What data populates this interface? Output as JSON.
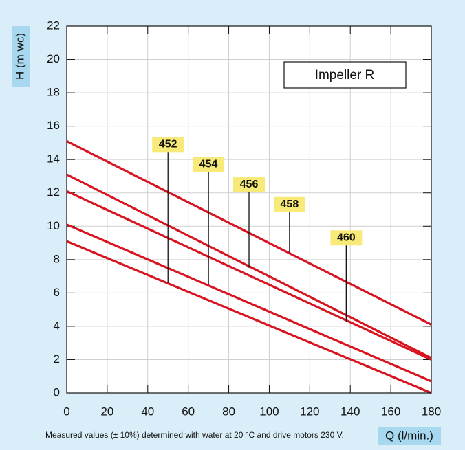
{
  "chart_data": {
    "type": "line",
    "y_label": "H (m wc)",
    "x_label": "Q (l/min.)",
    "inset_title": "Impeller R",
    "footnote": "Measured values (± 10%) determined with water at 20 °C and drive motors 230 V.",
    "x": [
      0,
      180
    ],
    "series": [
      {
        "color": "#d7141f",
        "values": [
          9.1,
          0
        ]
      },
      {
        "color": "#d7141f",
        "values": [
          10.1,
          0.7
        ]
      },
      {
        "color": "#d7141f",
        "values": [
          12.1,
          2.0
        ]
      },
      {
        "color": "#d7141f",
        "values": [
          13.1,
          2.1
        ]
      },
      {
        "color": "#d7141f",
        "values": [
          15.1,
          4.1
        ]
      }
    ],
    "annotations": [
      {
        "text": "452",
        "x": 50,
        "y": 14.9,
        "y_end": 6.6
      },
      {
        "text": "454",
        "x": 70,
        "y": 13.7,
        "y_end": 6.5
      },
      {
        "text": "456",
        "x": 90,
        "y": 12.5,
        "y_end": 7.5
      },
      {
        "text": "458",
        "x": 110,
        "y": 11.3,
        "y_end": 8.4
      },
      {
        "text": "460",
        "x": 138,
        "y": 9.3,
        "y_end": 4.3
      }
    ],
    "xlim": [
      0,
      180
    ],
    "xticks": [
      0,
      20,
      40,
      60,
      80,
      100,
      120,
      140,
      160,
      180
    ],
    "ylim": [
      0,
      22
    ],
    "yticks": [
      0,
      2,
      4,
      6,
      8,
      10,
      12,
      14,
      16,
      18,
      20,
      22
    ],
    "grid": true
  }
}
